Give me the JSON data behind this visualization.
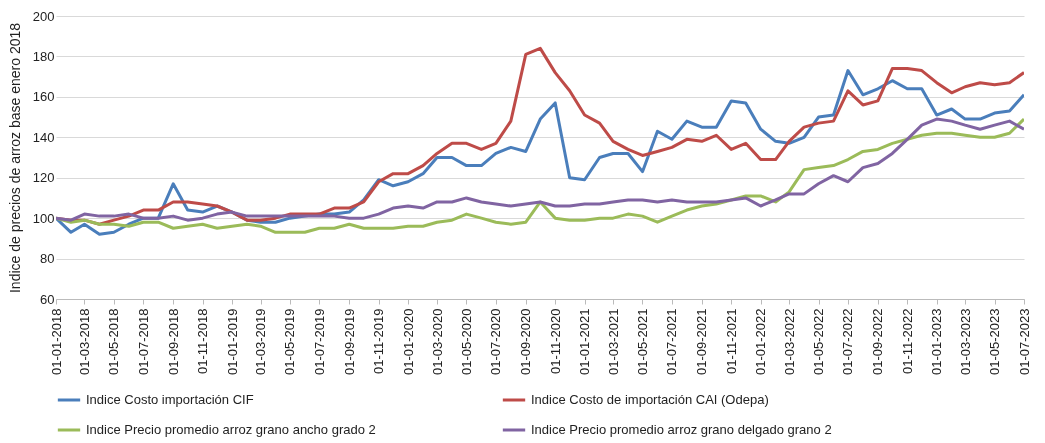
{
  "chart_data": {
    "type": "line",
    "ylabel": "Indice de precios de arroz base enero 2018",
    "x": [
      "2018-01",
      "2018-02",
      "2018-03",
      "2018-04",
      "2018-05",
      "2018-06",
      "2018-07",
      "2018-08",
      "2018-09",
      "2018-10",
      "2018-11",
      "2018-12",
      "2019-01",
      "2019-02",
      "2019-03",
      "2019-04",
      "2019-05",
      "2019-06",
      "2019-07",
      "2019-08",
      "2019-09",
      "2019-10",
      "2019-11",
      "2019-12",
      "2020-01",
      "2020-02",
      "2020-03",
      "2020-04",
      "2020-05",
      "2020-06",
      "2020-07",
      "2020-08",
      "2020-09",
      "2020-10",
      "2020-11",
      "2020-12",
      "2021-01",
      "2021-02",
      "2021-03",
      "2021-04",
      "2021-05",
      "2021-06",
      "2021-07",
      "2021-08",
      "2021-09",
      "2021-10",
      "2021-11",
      "2021-12",
      "2022-01",
      "2022-02",
      "2022-03",
      "2022-04",
      "2022-05",
      "2022-06",
      "2022-07",
      "2022-08",
      "2022-09",
      "2022-10",
      "2022-11",
      "2022-12",
      "2023-01",
      "2023-02",
      "2023-03",
      "2023-04",
      "2023-05",
      "2023-06",
      "2023-07"
    ],
    "series": [
      {
        "name": "Indice  Costo importación CIF",
        "color": "#4a7ebb",
        "values": [
          100,
          93,
          97,
          92,
          93,
          97,
          100,
          100,
          117,
          104,
          103,
          106,
          103,
          99,
          98,
          98,
          100,
          101,
          102,
          102,
          103,
          109,
          119,
          116,
          118,
          122,
          130,
          130,
          126,
          126,
          132,
          135,
          133,
          149,
          157,
          120,
          119,
          130,
          132,
          132,
          123,
          143,
          139,
          148,
          145,
          145,
          158,
          157,
          144,
          138,
          137,
          140,
          150,
          151,
          173,
          161,
          164,
          168,
          164,
          164,
          151,
          154,
          149,
          149,
          152,
          153,
          161
        ]
      },
      {
        "name": "Indice Costo de importación CAI (Odepa)",
        "color": "#be4b48",
        "values": [
          100,
          99,
          99,
          97,
          99,
          101,
          104,
          104,
          108,
          108,
          107,
          106,
          103,
          99,
          99,
          100,
          102,
          102,
          102,
          105,
          105,
          108,
          118,
          122,
          122,
          126,
          132,
          137,
          137,
          134,
          137,
          148,
          181,
          184,
          172,
          163,
          151,
          147,
          138,
          134,
          131,
          133,
          135,
          139,
          138,
          141,
          134,
          137,
          129,
          129,
          138,
          145,
          147,
          148,
          163,
          156,
          158,
          174,
          174,
          173,
          167,
          162,
          165,
          167,
          166,
          167,
          172
        ]
      },
      {
        "name": "Indice Precio promedio arroz grano ancho grado 2",
        "color": "#9bbb59",
        "values": [
          100,
          98,
          99,
          97,
          97,
          96,
          98,
          98,
          95,
          96,
          97,
          95,
          96,
          97,
          96,
          93,
          93,
          93,
          95,
          95,
          97,
          95,
          95,
          95,
          96,
          96,
          98,
          99,
          102,
          100,
          98,
          97,
          98,
          108,
          100,
          99,
          99,
          100,
          100,
          102,
          101,
          98,
          101,
          104,
          106,
          107,
          109,
          111,
          111,
          108,
          113,
          124,
          125,
          126,
          129,
          133,
          134,
          137,
          139,
          141,
          142,
          142,
          141,
          140,
          140,
          142,
          149
        ]
      },
      {
        "name": "Indice Precio promedio arroz grano delgado grano 2",
        "color": "#8064a2",
        "values": [
          100,
          99,
          102,
          101,
          101,
          102,
          100,
          100,
          101,
          99,
          100,
          102,
          103,
          101,
          101,
          101,
          101,
          101,
          101,
          101,
          100,
          100,
          102,
          105,
          106,
          105,
          108,
          108,
          110,
          108,
          107,
          106,
          107,
          108,
          106,
          106,
          107,
          107,
          108,
          109,
          109,
          108,
          109,
          108,
          108,
          108,
          109,
          110,
          106,
          109,
          112,
          112,
          117,
          121,
          118,
          125,
          127,
          132,
          139,
          146,
          149,
          148,
          146,
          144,
          146,
          148,
          144
        ]
      }
    ],
    "xlim": [
      "2018-01",
      "2023-07"
    ],
    "xticks": [
      {
        "value": "2018-01",
        "label": "01-01-2018"
      },
      {
        "value": "2018-03",
        "label": "01-03-2018"
      },
      {
        "value": "2018-05",
        "label": "01-05-2018"
      },
      {
        "value": "2018-07",
        "label": "01-07-2018"
      },
      {
        "value": "2018-09",
        "label": "01-09-2018"
      },
      {
        "value": "2018-11",
        "label": "01-11-2018"
      },
      {
        "value": "2019-01",
        "label": "01-01-2019"
      },
      {
        "value": "2019-03",
        "label": "01-03-2019"
      },
      {
        "value": "2019-05",
        "label": "01-05-2019"
      },
      {
        "value": "2019-07",
        "label": "01-07-2019"
      },
      {
        "value": "2019-09",
        "label": "01-09-2019"
      },
      {
        "value": "2019-11",
        "label": "01-11-2019"
      },
      {
        "value": "2020-01",
        "label": "01-01-2020"
      },
      {
        "value": "2020-03",
        "label": "01-03-2020"
      },
      {
        "value": "2020-05",
        "label": "01-05-2020"
      },
      {
        "value": "2020-07",
        "label": "01-07-2020"
      },
      {
        "value": "2020-09",
        "label": "01-09-2020"
      },
      {
        "value": "2020-11",
        "label": "01-11-2020"
      },
      {
        "value": "2021-01",
        "label": "01-01-2021"
      },
      {
        "value": "2021-03",
        "label": "01-03-2021"
      },
      {
        "value": "2021-05",
        "label": "01-05-2021"
      },
      {
        "value": "2021-07",
        "label": "01-07-2021"
      },
      {
        "value": "2021-09",
        "label": "01-09-2021"
      },
      {
        "value": "2021-11",
        "label": "01-11-2021"
      },
      {
        "value": "2022-01",
        "label": "01-01-2022"
      },
      {
        "value": "2022-03",
        "label": "01-03-2022"
      },
      {
        "value": "2022-05",
        "label": "01-05-2022"
      },
      {
        "value": "2022-07",
        "label": "01-07-2022"
      },
      {
        "value": "2022-09",
        "label": "01-09-2022"
      },
      {
        "value": "2022-11",
        "label": "01-11-2022"
      },
      {
        "value": "2023-01",
        "label": "01-01-2023"
      },
      {
        "value": "2023-03",
        "label": "01-03-2023"
      },
      {
        "value": "2023-05",
        "label": "01-05-2023"
      },
      {
        "value": "2023-07",
        "label": "01-07-2023"
      }
    ],
    "ylim": [
      60,
      200
    ],
    "yticks": [
      60,
      80,
      100,
      120,
      140,
      160,
      180,
      200
    ],
    "grid": "y",
    "legend": "bottom",
    "marker": "none",
    "line_style": "solid"
  }
}
